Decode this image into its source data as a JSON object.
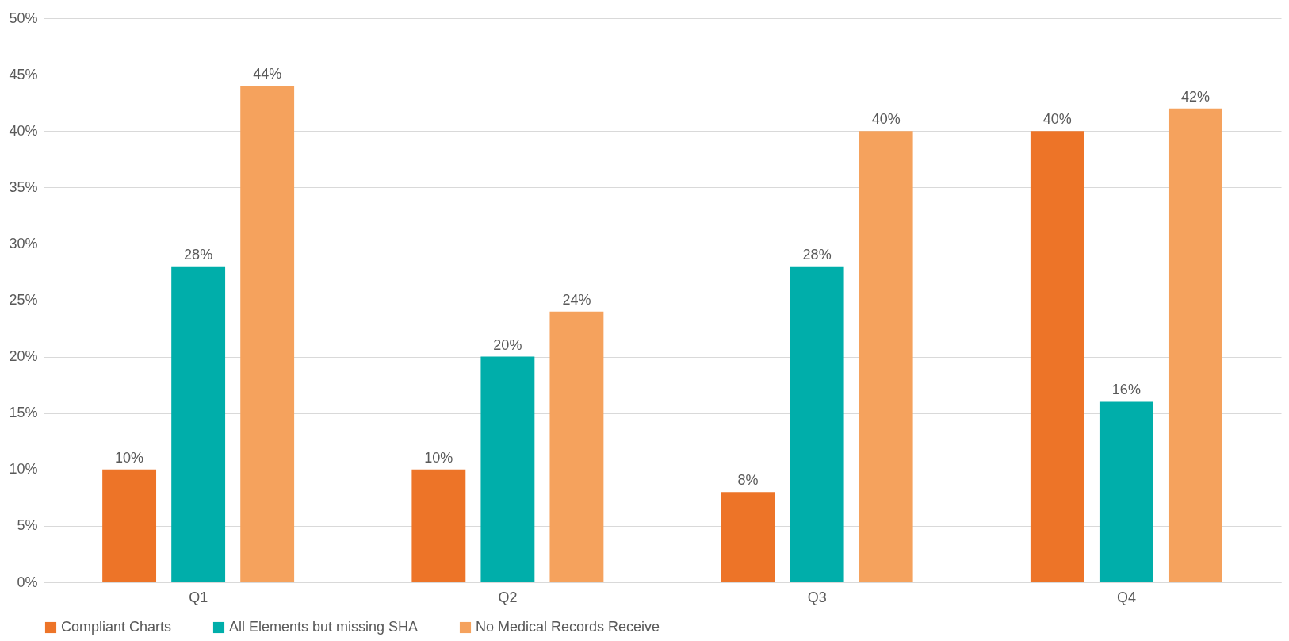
{
  "chart_data": {
    "type": "bar",
    "categories": [
      "Q1",
      "Q2",
      "Q3",
      "Q4"
    ],
    "series": [
      {
        "name": "Compliant Charts",
        "color": "#ed7428",
        "values": [
          10,
          10,
          8,
          40
        ],
        "value_labels": [
          "10%",
          "10%",
          "8%",
          "40%"
        ]
      },
      {
        "name": "All Elements but missing SHA",
        "color": "#00aeaa",
        "values": [
          28,
          20,
          28,
          16
        ],
        "value_labels": [
          "28%",
          "20%",
          "28%",
          "16%"
        ]
      },
      {
        "name": "No Medical Records Receive",
        "color": "#f5a25d",
        "values": [
          44,
          24,
          40,
          42
        ],
        "value_labels": [
          "44%",
          "24%",
          "40%",
          "42%"
        ]
      }
    ],
    "ylim": [
      0,
      50
    ],
    "yticks": [
      {
        "value": 0,
        "label": "0%"
      },
      {
        "value": 5,
        "label": "5%"
      },
      {
        "value": 10,
        "label": "10%"
      },
      {
        "value": 15,
        "label": "15%"
      },
      {
        "value": 20,
        "label": "20%"
      },
      {
        "value": 25,
        "label": "25%"
      },
      {
        "value": 30,
        "label": "30%"
      },
      {
        "value": 35,
        "label": "35%"
      },
      {
        "value": 40,
        "label": "40%"
      },
      {
        "value": 45,
        "label": "45%"
      },
      {
        "value": 50,
        "label": "50%"
      }
    ],
    "grid": "y",
    "legend": "bottom"
  }
}
